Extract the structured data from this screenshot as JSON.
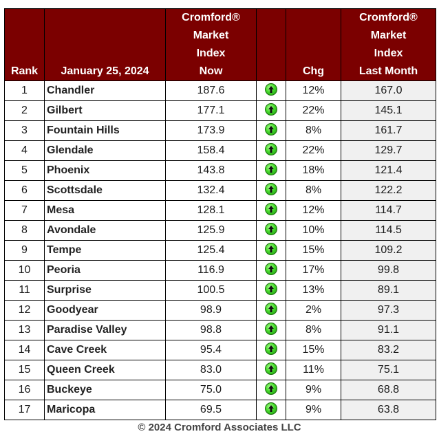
{
  "table": {
    "headers": {
      "rank": [
        "Rank"
      ],
      "date": [
        "January 25, 2024"
      ],
      "now": [
        "Cromford®",
        "Market",
        "Index",
        "Now"
      ],
      "arrow": [
        ""
      ],
      "chg": [
        "Chg"
      ],
      "last": [
        "Cromford®",
        "Market",
        "Index",
        "Last Month"
      ]
    },
    "rows": [
      {
        "rank": "1",
        "city": "Chandler",
        "now": "187.6",
        "chg": "12%",
        "last": "167.0",
        "trend": "up-arrow-icon"
      },
      {
        "rank": "2",
        "city": "Gilbert",
        "now": "177.1",
        "chg": "22%",
        "last": "145.1",
        "trend": "up-arrow-icon"
      },
      {
        "rank": "3",
        "city": "Fountain Hills",
        "now": "173.9",
        "chg": "8%",
        "last": "161.7",
        "trend": "up-arrow-icon"
      },
      {
        "rank": "4",
        "city": "Glendale",
        "now": "158.4",
        "chg": "22%",
        "last": "129.7",
        "trend": "up-arrow-icon"
      },
      {
        "rank": "5",
        "city": "Phoenix",
        "now": "143.8",
        "chg": "18%",
        "last": "121.4",
        "trend": "up-arrow-icon"
      },
      {
        "rank": "6",
        "city": "Scottsdale",
        "now": "132.4",
        "chg": "8%",
        "last": "122.2",
        "trend": "up-arrow-icon"
      },
      {
        "rank": "7",
        "city": "Mesa",
        "now": "128.1",
        "chg": "12%",
        "last": "114.7",
        "trend": "up-arrow-icon"
      },
      {
        "rank": "8",
        "city": "Avondale",
        "now": "125.9",
        "chg": "10%",
        "last": "114.5",
        "trend": "up-arrow-icon"
      },
      {
        "rank": "9",
        "city": "Tempe",
        "now": "125.4",
        "chg": "15%",
        "last": "109.2",
        "trend": "up-arrow-icon"
      },
      {
        "rank": "10",
        "city": "Peoria",
        "now": "116.9",
        "chg": "17%",
        "last": "99.8",
        "trend": "up-arrow-icon"
      },
      {
        "rank": "11",
        "city": "Surprise",
        "now": "100.5",
        "chg": "13%",
        "last": "89.1",
        "trend": "up-arrow-icon"
      },
      {
        "rank": "12",
        "city": "Goodyear",
        "now": "98.9",
        "chg": "2%",
        "last": "97.3",
        "trend": "up-arrow-icon"
      },
      {
        "rank": "13",
        "city": "Paradise Valley",
        "now": "98.8",
        "chg": "8%",
        "last": "91.1",
        "trend": "up-arrow-icon"
      },
      {
        "rank": "14",
        "city": "Cave Creek",
        "now": "95.4",
        "chg": "15%",
        "last": "83.2",
        "trend": "up-arrow-icon"
      },
      {
        "rank": "15",
        "city": "Queen Creek",
        "now": "83.0",
        "chg": "11%",
        "last": "75.1",
        "trend": "up-arrow-icon"
      },
      {
        "rank": "16",
        "city": "Buckeye",
        "now": "75.0",
        "chg": "9%",
        "last": "68.8",
        "trend": "up-arrow-icon"
      },
      {
        "rank": "17",
        "city": "Maricopa",
        "now": "69.5",
        "chg": "9%",
        "last": "63.8",
        "trend": "up-arrow-icon"
      }
    ]
  },
  "footer": "© 2024 Cromford Associates LLC",
  "colors": {
    "header_bg": "#7b0000",
    "header_text": "#ffffff",
    "last_month_bg": "#f0f0f0",
    "up_arrow": "#44d92a"
  },
  "chart_data": {
    "type": "table",
    "columns": [
      "Rank",
      "January 25, 2024",
      "Cromford® Market Index Now",
      "Chg",
      "Cromford® Market Index Last Month"
    ],
    "rows": [
      [
        "1",
        "Chandler",
        187.6,
        "12%",
        167.0
      ],
      [
        "2",
        "Gilbert",
        177.1,
        "22%",
        145.1
      ],
      [
        "3",
        "Fountain Hills",
        173.9,
        "8%",
        161.7
      ],
      [
        "4",
        "Glendale",
        158.4,
        "22%",
        129.7
      ],
      [
        "5",
        "Phoenix",
        143.8,
        "18%",
        121.4
      ],
      [
        "6",
        "Scottsdale",
        132.4,
        "8%",
        122.2
      ],
      [
        "7",
        "Mesa",
        128.1,
        "12%",
        114.7
      ],
      [
        "8",
        "Avondale",
        125.9,
        "10%",
        114.5
      ],
      [
        "9",
        "Tempe",
        125.4,
        "15%",
        109.2
      ],
      [
        "10",
        "Peoria",
        116.9,
        "17%",
        99.8
      ],
      [
        "11",
        "Surprise",
        100.5,
        "13%",
        89.1
      ],
      [
        "12",
        "Goodyear",
        98.9,
        "2%",
        97.3
      ],
      [
        "13",
        "Paradise Valley",
        98.8,
        "8%",
        91.1
      ],
      [
        "14",
        "Cave Creek",
        95.4,
        "15%",
        83.2
      ],
      [
        "15",
        "Queen Creek",
        83.0,
        "11%",
        75.1
      ],
      [
        "16",
        "Buckeye",
        75.0,
        "9%",
        68.8
      ],
      [
        "17",
        "Maricopa",
        69.5,
        "9%",
        63.8
      ]
    ],
    "footer": "© 2024 Cromford Associates LLC"
  }
}
